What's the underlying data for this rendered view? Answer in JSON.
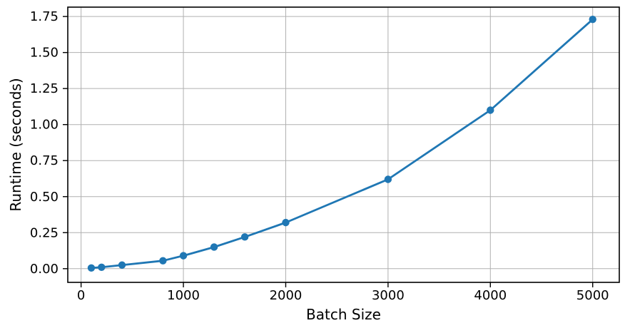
{
  "chart_data": {
    "type": "line",
    "title": "",
    "xlabel": "Batch Size",
    "ylabel": "Runtime (seconds)",
    "x": [
      100,
      200,
      400,
      800,
      1000,
      1300,
      1600,
      2000,
      3000,
      4000,
      5000
    ],
    "y": [
      0.005,
      0.01,
      0.025,
      0.055,
      0.09,
      0.15,
      0.22,
      0.32,
      0.62,
      1.1,
      1.73
    ],
    "xlim": [
      -130,
      5260
    ],
    "ylim": [
      -0.095,
      1.815
    ],
    "x_ticks": [
      0,
      1000,
      2000,
      3000,
      4000,
      5000
    ],
    "x_tick_labels": [
      "0",
      "1000",
      "2000",
      "3000",
      "4000",
      "5000"
    ],
    "y_ticks": [
      0,
      0.25,
      0.5,
      0.75,
      1.0,
      1.25,
      1.5,
      1.75
    ],
    "y_tick_labels": [
      "0.00",
      "0.25",
      "0.50",
      "0.75",
      "1.00",
      "1.25",
      "1.50",
      "1.75"
    ],
    "grid": true,
    "legend": false,
    "marker": "o",
    "marker_size": 5.2,
    "line_width": 2.8,
    "line_color": "#1f77b4",
    "grid_color": "#b0b0b0",
    "spine_color": "#000000",
    "text_color": "#000000",
    "background": "#ffffff"
  }
}
